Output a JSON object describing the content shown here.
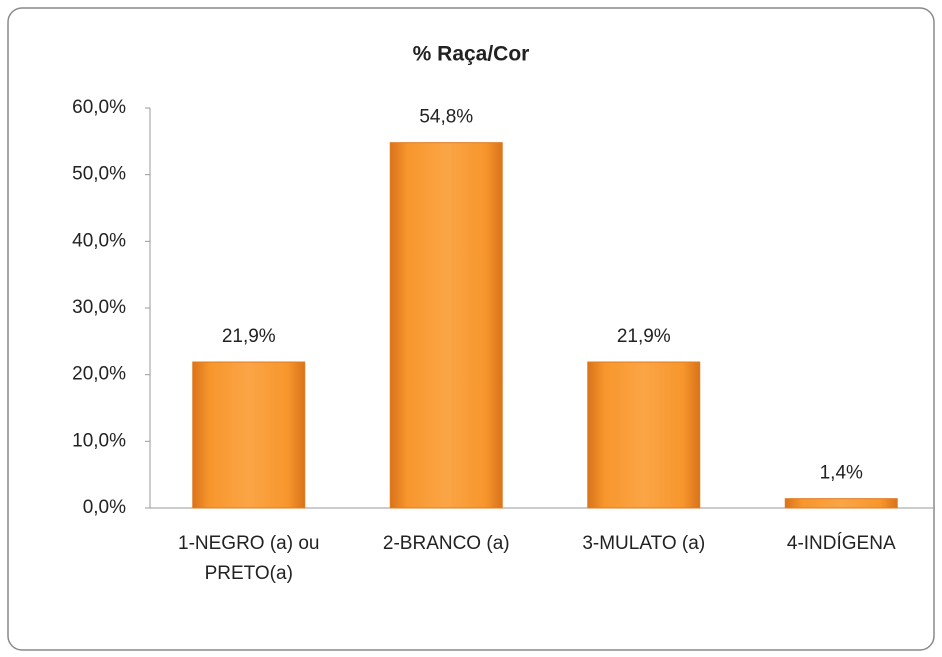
{
  "chart_data": {
    "type": "bar",
    "title": "% Raça/Cor",
    "categories": [
      "1-NEGRO (a) ou PRETO(a)",
      "2-BRANCO (a)",
      "3-MULATO (a)",
      "4-INDÍGENA"
    ],
    "values": [
      21.9,
      54.8,
      21.9,
      1.4
    ],
    "value_labels": [
      "21,9%",
      "54,8%",
      "21,9%",
      "1,4%"
    ],
    "color": "#f7962c",
    "ylim": [
      0,
      60
    ],
    "yticks": [
      {
        "value": 0,
        "label": "0,0%"
      },
      {
        "value": 10,
        "label": "10,0%"
      },
      {
        "value": 20,
        "label": "20,0%"
      },
      {
        "value": 30,
        "label": "30,0%"
      },
      {
        "value": 40,
        "label": "40,0%"
      },
      {
        "value": 50,
        "label": "50,0%"
      },
      {
        "value": 60,
        "label": "60,0%"
      }
    ],
    "grid": false
  }
}
